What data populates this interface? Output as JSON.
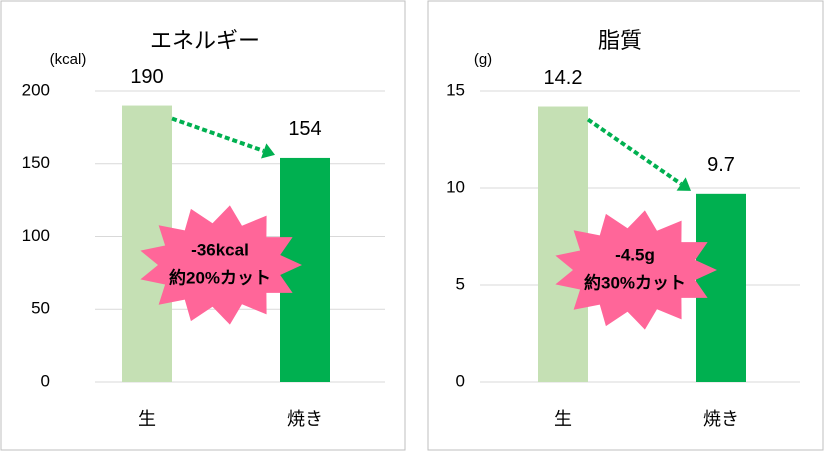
{
  "chart_data": [
    {
      "type": "bar",
      "title": "エネルギー",
      "y_label": "(kcal)",
      "categories": [
        "生",
        "焼き"
      ],
      "values": [
        190,
        154
      ],
      "colors": [
        "#c5e0b4",
        "#00b050"
      ],
      "value_label_colors": [
        "#000000",
        "#ff0000"
      ],
      "annotation": [
        "-36kcal",
        "約20%カット"
      ],
      "annotation_color": "#ff6699",
      "arrow_color": "#00b050",
      "ylim": [
        0,
        200
      ],
      "yticks": [
        0,
        50,
        100,
        150,
        200
      ],
      "grid": true
    },
    {
      "type": "bar",
      "title": "脂質",
      "y_label": "(g)",
      "categories": [
        "生",
        "焼き"
      ],
      "values": [
        14.2,
        9.7
      ],
      "colors": [
        "#c5e0b4",
        "#00b050"
      ],
      "value_label_colors": [
        "#000000",
        "#ff0000"
      ],
      "annotation": [
        "-4.5g",
        "約30%カット"
      ],
      "annotation_color": "#ff6699",
      "arrow_color": "#00b050",
      "ylim": [
        0,
        15
      ],
      "yticks": [
        0,
        5,
        10,
        15
      ],
      "grid": true
    }
  ]
}
